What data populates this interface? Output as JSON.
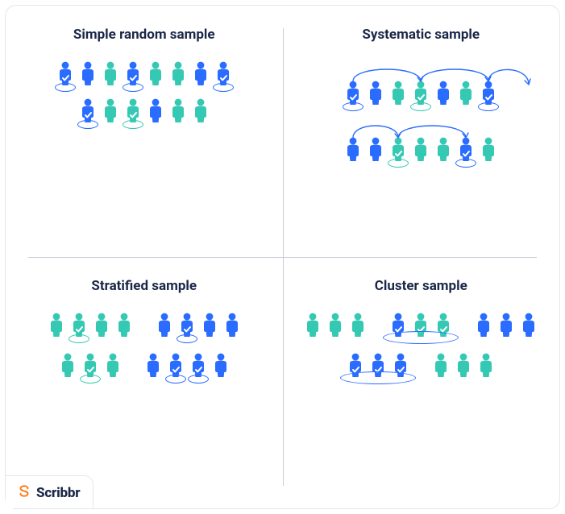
{
  "brand": "Scribbr",
  "colors": {
    "blue": "#2a6cff",
    "teal": "#35c9b4",
    "title": "#1a2748",
    "divider": "#c9ccd6",
    "border": "#e3e6ed",
    "orange": "#ff7a1a",
    "bg": "#ffffff"
  },
  "quadrants": {
    "simple_random": {
      "title": "Simple random sample",
      "rows": [
        [
          {
            "c": "blue",
            "sel": true
          },
          {
            "c": "blue"
          },
          {
            "c": "teal"
          },
          {
            "c": "blue",
            "sel": true
          },
          {
            "c": "teal"
          },
          {
            "c": "teal"
          },
          {
            "c": "blue"
          },
          {
            "c": "blue",
            "sel": true
          }
        ],
        [
          {
            "c": "blue",
            "sel": true
          },
          {
            "c": "teal"
          },
          {
            "c": "teal",
            "sel": true
          },
          {
            "c": "blue"
          },
          {
            "c": "teal"
          },
          {
            "c": "teal"
          }
        ]
      ]
    },
    "systematic": {
      "title": "Systematic sample",
      "rows": [
        [
          {
            "c": "blue",
            "sel": true
          },
          {
            "c": "blue"
          },
          {
            "c": "teal"
          },
          {
            "c": "teal",
            "sel": true
          },
          {
            "c": "blue"
          },
          {
            "c": "teal"
          },
          {
            "c": "blue",
            "sel": true
          }
        ],
        [
          {
            "c": "blue"
          },
          {
            "c": "blue"
          },
          {
            "c": "teal",
            "sel": true
          },
          {
            "c": "teal"
          },
          {
            "c": "teal"
          },
          {
            "c": "blue",
            "sel": true
          },
          {
            "c": "teal"
          }
        ]
      ],
      "arcs": [
        {
          "row": 0,
          "from": 0,
          "to": 3
        },
        {
          "row": 0,
          "from": 3,
          "to": 6
        },
        {
          "row": 1,
          "from": 0,
          "to": 2
        },
        {
          "row": 1,
          "from": 2,
          "to": 5
        }
      ],
      "arc_extra": {
        "from_row": 0,
        "from_i": 6,
        "to_row": 1,
        "to_i": 0
      }
    },
    "stratified": {
      "title": "Stratified sample",
      "groups": [
        [
          [
            {
              "c": "teal"
            },
            {
              "c": "teal",
              "sel": true
            },
            {
              "c": "teal"
            },
            {
              "c": "teal"
            }
          ],
          [
            {
              "c": "blue"
            },
            {
              "c": "blue",
              "sel": true
            },
            {
              "c": "blue"
            },
            {
              "c": "blue"
            }
          ]
        ],
        [
          [
            {
              "c": "teal"
            },
            {
              "c": "teal",
              "sel": true
            },
            {
              "c": "teal"
            }
          ],
          [
            {
              "c": "blue"
            },
            {
              "c": "blue",
              "sel": true
            },
            {
              "c": "blue",
              "sel": true
            },
            {
              "c": "blue"
            }
          ]
        ]
      ]
    },
    "cluster": {
      "title": "Cluster sample",
      "groups": [
        [
          [
            {
              "c": "teal"
            },
            {
              "c": "teal"
            },
            {
              "c": "teal"
            }
          ],
          [
            {
              "c": "blue",
              "sel": true
            },
            {
              "c": "teal",
              "sel": true
            },
            {
              "c": "teal",
              "sel": true
            }
          ],
          [
            {
              "c": "blue"
            },
            {
              "c": "blue"
            },
            {
              "c": "blue"
            }
          ]
        ],
        [
          [
            {
              "c": "blue",
              "sel": true
            },
            {
              "c": "blue",
              "sel": true
            },
            {
              "c": "blue",
              "sel": true
            }
          ],
          [
            {
              "c": "teal"
            },
            {
              "c": "teal"
            },
            {
              "c": "teal"
            }
          ]
        ]
      ],
      "cluster_selected": [
        {
          "row": 0,
          "group": 1
        },
        {
          "row": 1,
          "group": 0
        }
      ]
    }
  },
  "layout": {
    "person_w": 22,
    "person_h": 32,
    "gap": 6,
    "sel_ellipse_w": 26,
    "sel_ellipse_h": 11,
    "cluster_ellipse_h": 16,
    "arc_height": 20
  }
}
